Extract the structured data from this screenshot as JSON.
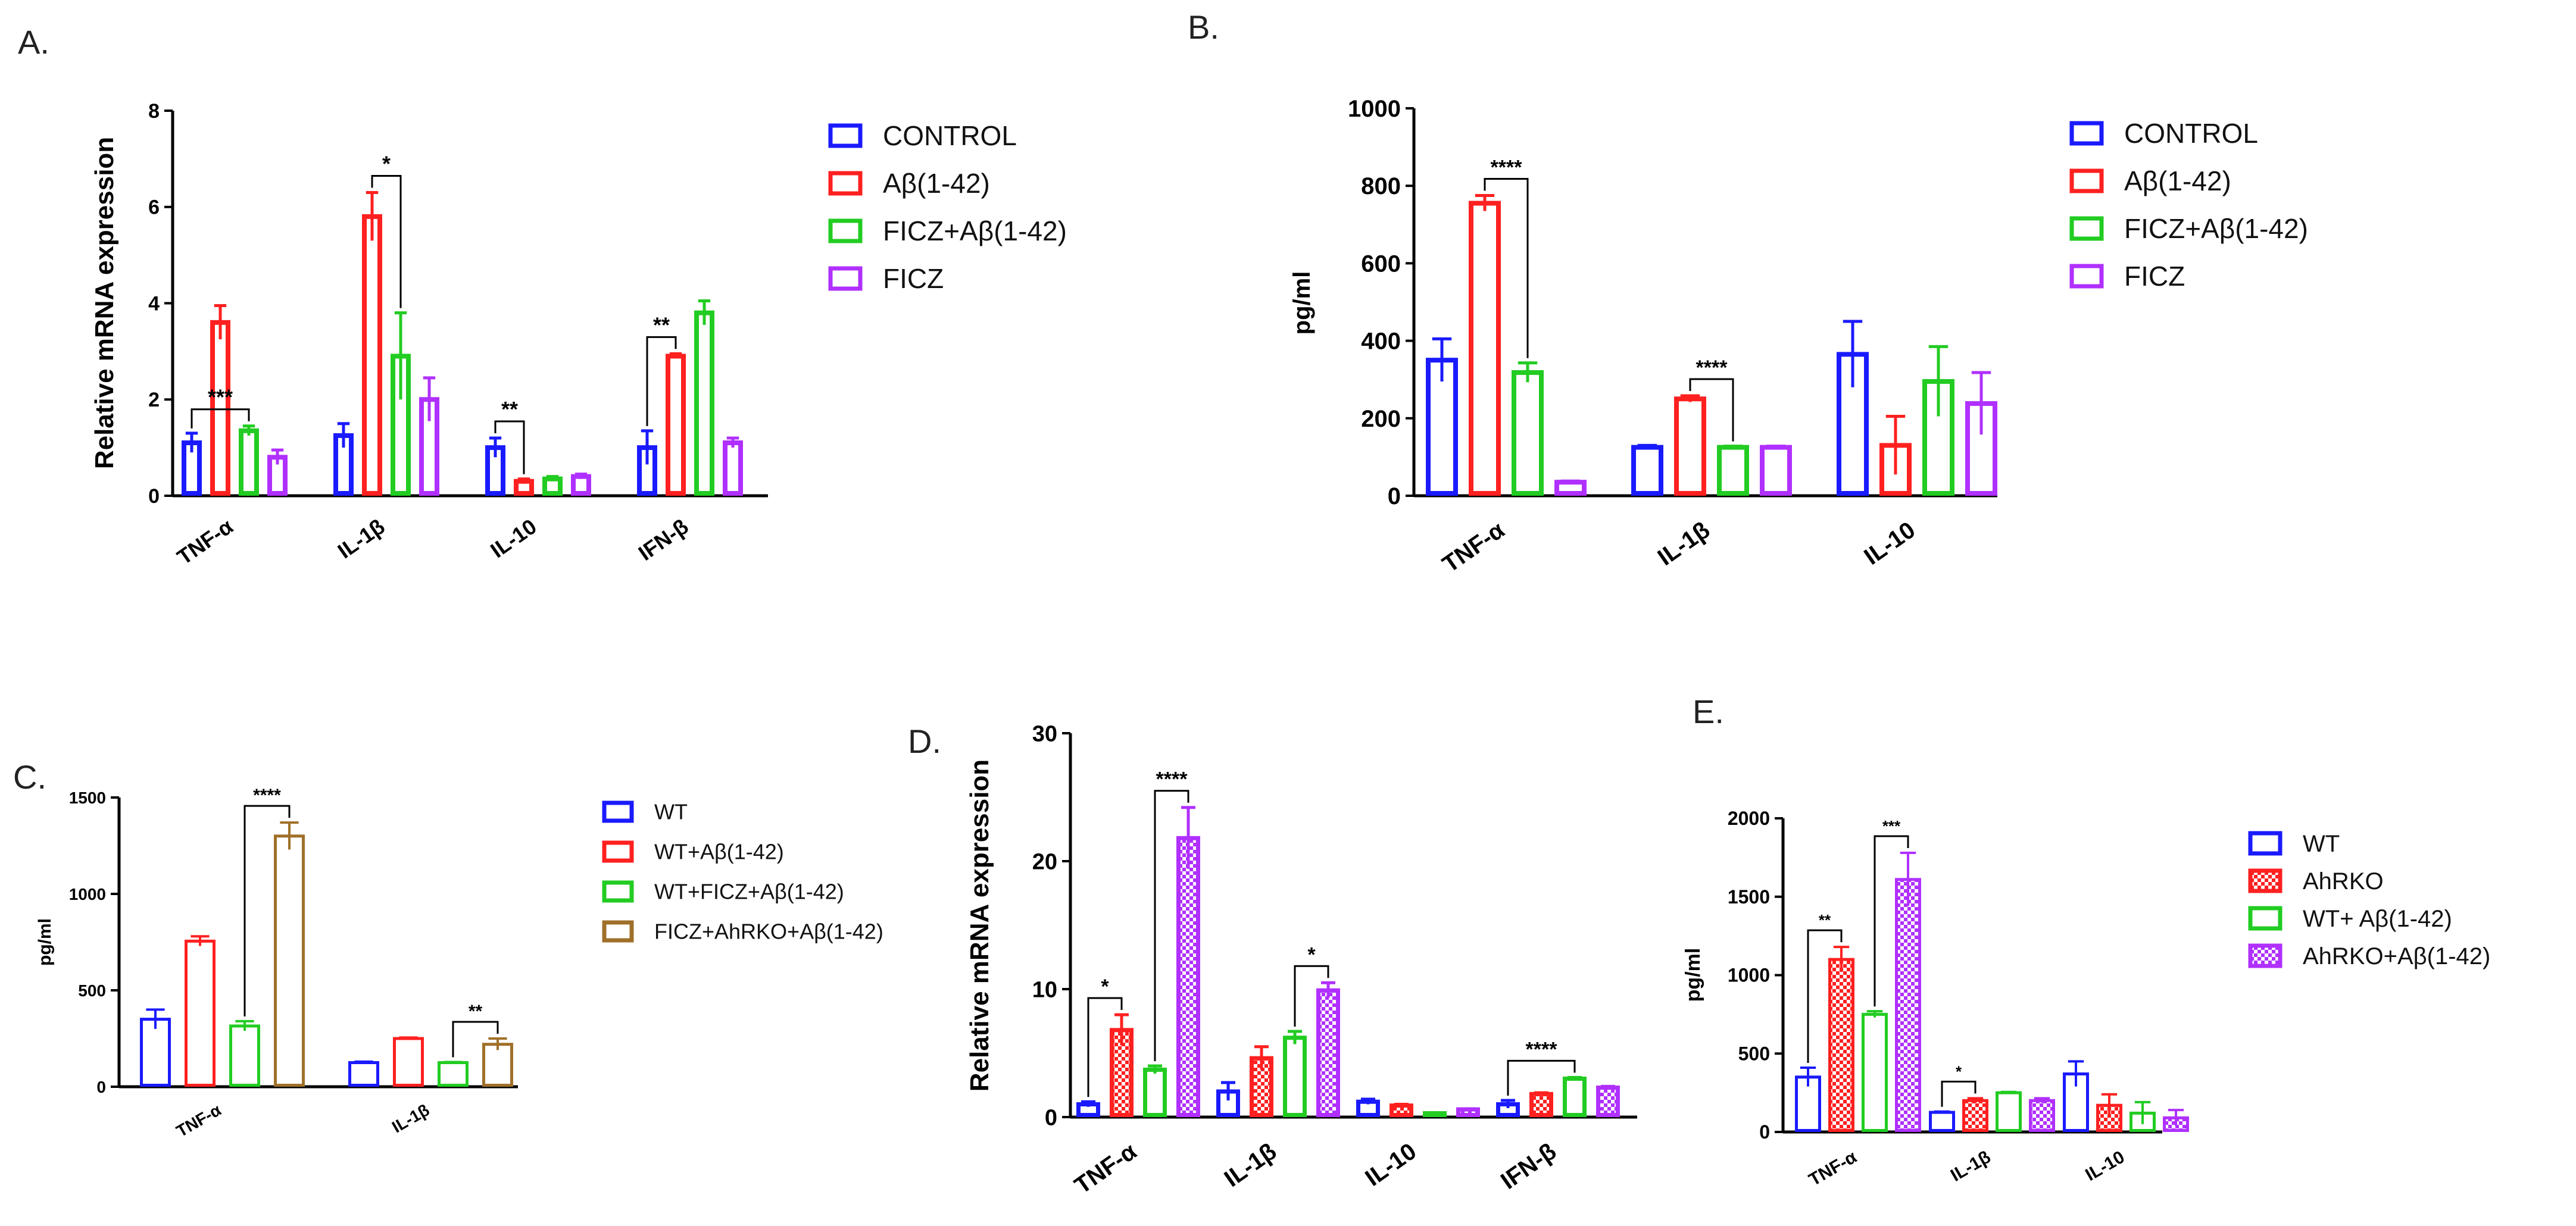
{
  "chart_data": [
    {
      "panel": "A.",
      "type": "bar",
      "ylabel": "Relative mRNA expression",
      "ylim": [
        0,
        8
      ],
      "yticks": [
        "0",
        "2",
        "4",
        "6",
        "8"
      ],
      "categories": [
        "TNF-α",
        "IL-1β",
        "IL-10",
        "IFN-β"
      ],
      "series": [
        {
          "name": "CONTROL",
          "color": "#1a1aff",
          "pattern": "solid",
          "values": [
            1.1,
            1.25,
            1.0,
            1.0
          ],
          "errors": [
            0.2,
            0.25,
            0.2,
            0.35
          ]
        },
        {
          "name": "Aβ(1-42)",
          "color": "#ff2020",
          "pattern": "solid",
          "values": [
            3.6,
            5.8,
            0.3,
            2.9
          ],
          "errors": [
            0.35,
            0.5,
            0.05,
            0.05
          ]
        },
        {
          "name": "FICZ+Aβ(1-42)",
          "color": "#22cc22",
          "pattern": "solid",
          "values": [
            1.35,
            2.9,
            0.35,
            3.8
          ],
          "errors": [
            0.1,
            0.9,
            0.05,
            0.25
          ]
        },
        {
          "name": "FICZ",
          "color": "#b030ff",
          "pattern": "solid",
          "values": [
            0.8,
            2.0,
            0.4,
            1.1
          ],
          "errors": [
            0.15,
            0.45,
            0.05,
            0.1
          ]
        }
      ],
      "significance": [
        {
          "label": "***",
          "category": 0,
          "from_series": 0,
          "to_series": 2
        },
        {
          "label": "*",
          "category": 1,
          "from_series": 1,
          "to_series": 2
        },
        {
          "label": "**",
          "category": 2,
          "from_series": 0,
          "to_series": 1
        },
        {
          "label": "**",
          "category": 3,
          "from_series": 0,
          "to_series": 1
        }
      ]
    },
    {
      "panel": "B.",
      "type": "bar",
      "ylabel": "pg/ml",
      "ylim": [
        0,
        1000
      ],
      "yticks": [
        "0",
        "200",
        "400",
        "600",
        "800",
        "1000"
      ],
      "categories": [
        "TNF-α",
        "IL-1β",
        "IL-10"
      ],
      "series": [
        {
          "name": "CONTROL",
          "color": "#1a1aff",
          "pattern": "solid",
          "values": [
            350,
            125,
            365
          ],
          "errors": [
            55,
            5,
            85
          ]
        },
        {
          "name": "Aβ(1-42)",
          "color": "#ff2020",
          "pattern": "solid",
          "values": [
            755,
            250,
            130
          ],
          "errors": [
            20,
            8,
            75
          ]
        },
        {
          "name": "FICZ+Aβ(1-42)",
          "color": "#22cc22",
          "pattern": "solid",
          "values": [
            318,
            125,
            295
          ],
          "errors": [
            25,
            3,
            90
          ]
        },
        {
          "name": "FICZ",
          "color": "#b030ff",
          "pattern": "solid",
          "values": [
            35,
            125,
            238
          ],
          "errors": [
            3,
            3,
            80
          ]
        }
      ],
      "significance": [
        {
          "label": "****",
          "category": 0,
          "from_series": 1,
          "to_series": 2
        },
        {
          "label": "****",
          "category": 1,
          "from_series": 1,
          "to_series": 2
        }
      ]
    },
    {
      "panel": "C.",
      "type": "bar",
      "ylabel": "pg/ml",
      "ylim": [
        0,
        1500
      ],
      "yticks": [
        "0",
        "500",
        "1000",
        "1500"
      ],
      "categories": [
        "TNF-α",
        "IL-1β"
      ],
      "series": [
        {
          "name": "WT",
          "color": "#1a1aff",
          "pattern": "solid",
          "values": [
            350,
            125
          ],
          "errors": [
            50,
            5
          ]
        },
        {
          "name": "WT+Aβ(1-42)",
          "color": "#ff2020",
          "pattern": "solid",
          "values": [
            755,
            250
          ],
          "errors": [
            25,
            5
          ]
        },
        {
          "name": "WT+FICZ+Aβ(1-42)",
          "color": "#22cc22",
          "pattern": "solid",
          "values": [
            315,
            125
          ],
          "errors": [
            25,
            3
          ]
        },
        {
          "name": "FICZ+AhRKO+Aβ(1-42)",
          "color": "#a0702a",
          "pattern": "solid",
          "values": [
            1300,
            220
          ],
          "errors": [
            70,
            30
          ]
        }
      ],
      "significance": [
        {
          "label": "****",
          "category": 0,
          "from_series": 2,
          "to_series": 3
        },
        {
          "label": "**",
          "category": 1,
          "from_series": 2,
          "to_series": 3
        }
      ]
    },
    {
      "panel": "D.",
      "type": "bar",
      "ylabel": "Relative mRNA expression",
      "ylim": [
        0,
        30
      ],
      "yticks": [
        "0",
        "10",
        "20",
        "30"
      ],
      "categories": [
        "TNF-α",
        "IL-1β",
        "IL-10",
        "IFN-β"
      ],
      "series": [
        {
          "name": "WT",
          "color": "#1a1aff",
          "pattern": "solid",
          "values": [
            1.0,
            2.0,
            1.2,
            1.0
          ],
          "errors": [
            0.2,
            0.7,
            0.2,
            0.3
          ]
        },
        {
          "name": "AhRKO",
          "color": "#ff2020",
          "pattern": "checker",
          "values": [
            6.8,
            4.6,
            0.9,
            1.8
          ],
          "errors": [
            1.2,
            0.9,
            0.1,
            0.1
          ]
        },
        {
          "name": "WT+ Aβ(1-42)",
          "color": "#22cc22",
          "pattern": "solid",
          "values": [
            3.7,
            6.2,
            0.3,
            3.0
          ],
          "errors": [
            0.3,
            0.5,
            0.05,
            0.1
          ]
        },
        {
          "name": "AhRKO+Aβ(1-42)",
          "color": "#b030ff",
          "pattern": "checker",
          "values": [
            21.8,
            9.9,
            0.6,
            2.3
          ],
          "errors": [
            2.4,
            0.6,
            0.05,
            0.1
          ]
        }
      ],
      "significance": [
        {
          "label": "*",
          "category": 0,
          "from_series": 0,
          "to_series": 1
        },
        {
          "label": "****",
          "category": 0,
          "from_series": 2,
          "to_series": 3
        },
        {
          "label": "*",
          "category": 1,
          "from_series": 2,
          "to_series": 3
        },
        {
          "label": "****",
          "category": 3,
          "from_series": 0,
          "to_series": 2
        }
      ]
    },
    {
      "panel": "E.",
      "type": "bar",
      "ylabel": "pg/ml",
      "ylim": [
        0,
        2000
      ],
      "yticks": [
        "0",
        "500",
        "1000",
        "1500",
        "2000"
      ],
      "categories": [
        "TNF-α",
        "IL-1β",
        "IL-10"
      ],
      "series": [
        {
          "name": "WT",
          "color": "#1a1aff",
          "pattern": "solid",
          "values": [
            350,
            125,
            370
          ],
          "errors": [
            60,
            5,
            80
          ]
        },
        {
          "name": "AhRKO",
          "color": "#ff2020",
          "pattern": "checker",
          "values": [
            1100,
            200,
            170
          ],
          "errors": [
            80,
            15,
            70
          ]
        },
        {
          "name": "WT+ Aβ(1-42)",
          "color": "#22cc22",
          "pattern": "solid",
          "values": [
            750,
            250,
            120
          ],
          "errors": [
            20,
            5,
            70
          ]
        },
        {
          "name": "AhRKO+Aβ(1-42)",
          "color": "#b030ff",
          "pattern": "checker",
          "values": [
            1610,
            200,
            90
          ],
          "errors": [
            170,
            15,
            50
          ]
        }
      ],
      "significance": [
        {
          "label": "**",
          "category": 0,
          "from_series": 0,
          "to_series": 1
        },
        {
          "label": "***",
          "category": 0,
          "from_series": 2,
          "to_series": 3
        },
        {
          "label": "*",
          "category": 1,
          "from_series": 0,
          "to_series": 1
        }
      ]
    }
  ]
}
